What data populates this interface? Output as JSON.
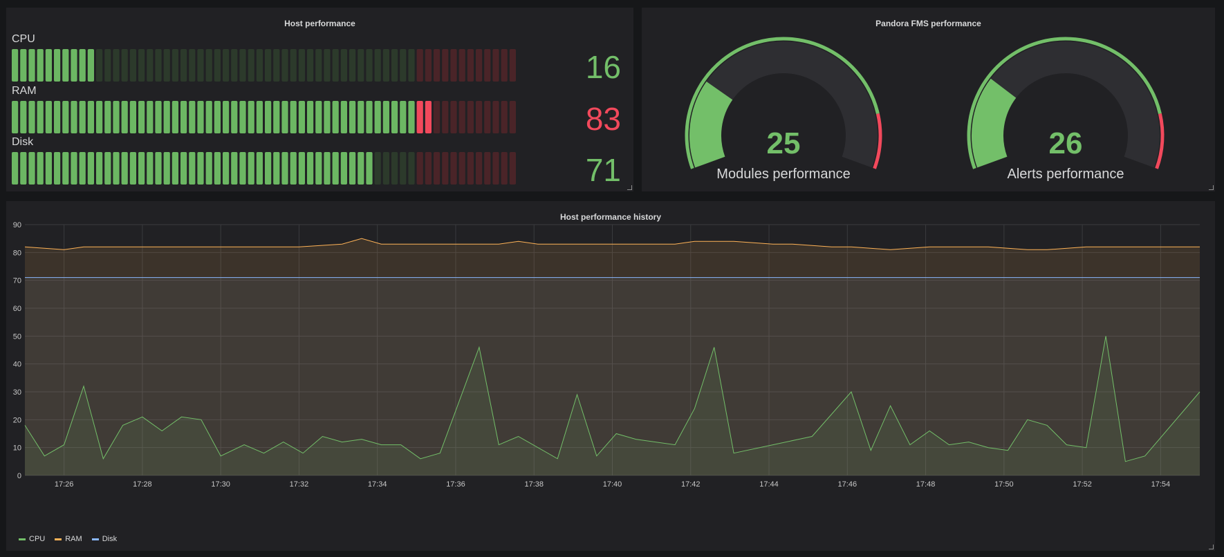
{
  "host_panel": {
    "title": "Host performance",
    "bars": [
      {
        "name": "CPU",
        "value": "16",
        "fraction": 0.16,
        "value_color": "#73bf69"
      },
      {
        "name": "RAM",
        "value": "83",
        "fraction": 0.83,
        "value_color": "#f2495c"
      },
      {
        "name": "Disk",
        "value": "71",
        "fraction": 0.71,
        "value_color": "#73bf69"
      }
    ],
    "threshold_fraction": 0.8
  },
  "pandora_panel": {
    "title": "Pandora FMS performance",
    "gauges": [
      {
        "label": "Modules performance",
        "value": "25",
        "fraction": 0.25
      },
      {
        "label": "Alerts performance",
        "value": "26",
        "fraction": 0.26
      }
    ],
    "threshold_fraction": 0.85
  },
  "history_panel": {
    "title": "Host performance history",
    "chart_data": {
      "type": "line",
      "ylim": [
        0,
        90
      ],
      "yticks": [
        "0",
        "10",
        "20",
        "30",
        "40",
        "50",
        "60",
        "70",
        "80",
        "90"
      ],
      "xlim_minutes": [
        25.0,
        55.0
      ],
      "xticks": [
        {
          "minute": 26,
          "label": "17:26"
        },
        {
          "minute": 28,
          "label": "17:28"
        },
        {
          "minute": 30,
          "label": "17:30"
        },
        {
          "minute": 32,
          "label": "17:32"
        },
        {
          "minute": 34,
          "label": "17:34"
        },
        {
          "minute": 36,
          "label": "17:36"
        },
        {
          "minute": 38,
          "label": "17:38"
        },
        {
          "minute": 40,
          "label": "17:40"
        },
        {
          "minute": 42,
          "label": "17:42"
        },
        {
          "minute": 44,
          "label": "17:44"
        },
        {
          "minute": 46,
          "label": "17:46"
        },
        {
          "minute": 48,
          "label": "17:48"
        },
        {
          "minute": 50,
          "label": "17:50"
        },
        {
          "minute": 52,
          "label": "17:52"
        },
        {
          "minute": 54,
          "label": "17:54"
        }
      ],
      "series": [
        {
          "name": "CPU",
          "color": "#73bf69",
          "points": [
            [
              25.0,
              18
            ],
            [
              25.5,
              7
            ],
            [
              26.0,
              11
            ],
            [
              26.5,
              32
            ],
            [
              27.0,
              6
            ],
            [
              27.5,
              18
            ],
            [
              28.0,
              21
            ],
            [
              28.5,
              16
            ],
            [
              29.0,
              21
            ],
            [
              29.5,
              20
            ],
            [
              30.0,
              7
            ],
            [
              30.6,
              11
            ],
            [
              31.1,
              8
            ],
            [
              31.6,
              12
            ],
            [
              32.1,
              8
            ],
            [
              32.6,
              14
            ],
            [
              33.1,
              12
            ],
            [
              33.6,
              13
            ],
            [
              34.1,
              11
            ],
            [
              34.6,
              11
            ],
            [
              35.1,
              6
            ],
            [
              35.6,
              8
            ],
            [
              36.6,
              46
            ],
            [
              37.1,
              11
            ],
            [
              37.6,
              14
            ],
            [
              38.6,
              6
            ],
            [
              39.1,
              29
            ],
            [
              39.6,
              7
            ],
            [
              40.1,
              15
            ],
            [
              40.6,
              13
            ],
            [
              41.6,
              11
            ],
            [
              42.1,
              24
            ],
            [
              42.6,
              46
            ],
            [
              43.1,
              8
            ],
            [
              44.1,
              11
            ],
            [
              45.1,
              14
            ],
            [
              46.1,
              30
            ],
            [
              46.6,
              9
            ],
            [
              47.1,
              25
            ],
            [
              47.6,
              11
            ],
            [
              48.1,
              16
            ],
            [
              48.6,
              11
            ],
            [
              49.1,
              12
            ],
            [
              49.6,
              10
            ],
            [
              50.1,
              9
            ],
            [
              50.6,
              20
            ],
            [
              51.1,
              18
            ],
            [
              51.6,
              11
            ],
            [
              52.1,
              10
            ],
            [
              52.6,
              50
            ],
            [
              53.1,
              5
            ],
            [
              53.6,
              7
            ],
            [
              55.0,
              30
            ],
            [
              55.2,
              30
            ]
          ]
        },
        {
          "name": "RAM",
          "color": "#ffb357",
          "points": [
            [
              25.0,
              82
            ],
            [
              26.0,
              81
            ],
            [
              26.5,
              82
            ],
            [
              32.0,
              82
            ],
            [
              33.1,
              83
            ],
            [
              33.6,
              85
            ],
            [
              34.1,
              83
            ],
            [
              37.1,
              83
            ],
            [
              37.6,
              84
            ],
            [
              38.1,
              83
            ],
            [
              41.6,
              83
            ],
            [
              42.1,
              84
            ],
            [
              43.1,
              84
            ],
            [
              44.1,
              83
            ],
            [
              44.6,
              83
            ],
            [
              45.6,
              82
            ],
            [
              46.1,
              82
            ],
            [
              47.1,
              81
            ],
            [
              48.1,
              82
            ],
            [
              49.6,
              82
            ],
            [
              50.6,
              81
            ],
            [
              51.1,
              81
            ],
            [
              52.1,
              82
            ],
            [
              55.2,
              82
            ]
          ]
        },
        {
          "name": "Disk",
          "color": "#8ab8ff",
          "points": [
            [
              25.0,
              71
            ],
            [
              55.2,
              71
            ]
          ]
        }
      ]
    },
    "legend": [
      {
        "label": "CPU",
        "color": "#73bf69"
      },
      {
        "label": "RAM",
        "color": "#ffb357"
      },
      {
        "label": "Disk",
        "color": "#8ab8ff"
      }
    ]
  }
}
